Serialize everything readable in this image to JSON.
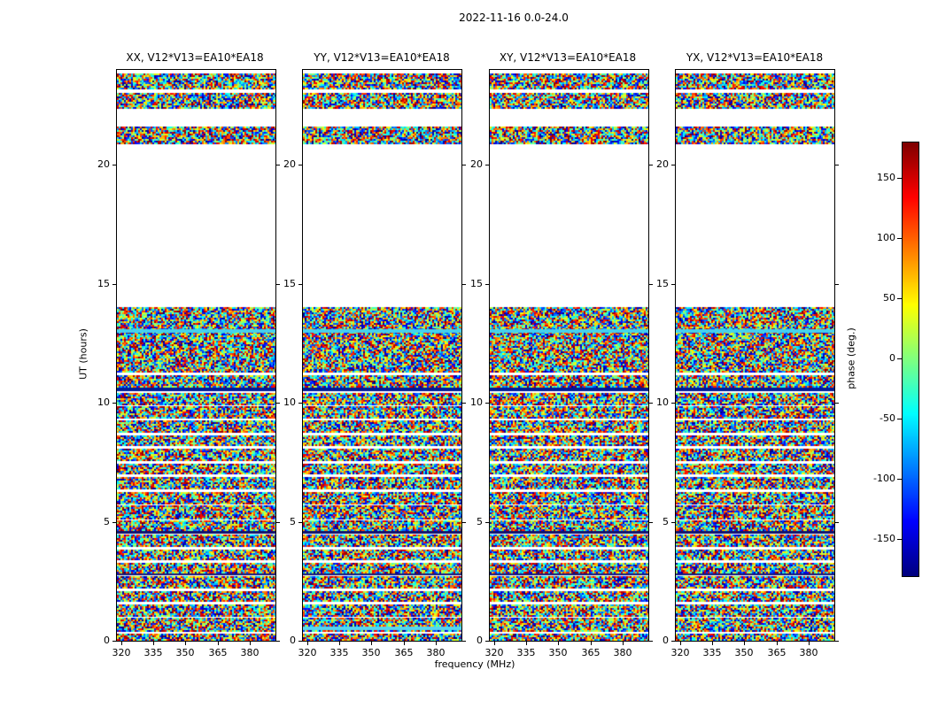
{
  "chart_data": {
    "type": "heatmap",
    "title": "2022-11-16 0.0-24.0",
    "panels": [
      {
        "title": "XX, V12*V13=EA10*EA18",
        "pol": "XX"
      },
      {
        "title": "YY, V12*V13=EA10*EA18",
        "pol": "YY"
      },
      {
        "title": "XY, V12*V13=EA10*EA18",
        "pol": "XY"
      },
      {
        "title": "YX, V12*V13=EA10*EA18",
        "pol": "YX"
      }
    ],
    "xlabel": "frequency (MHz)",
    "ylabel": "UT (hours)",
    "xlim": [
      318,
      392
    ],
    "ylim": [
      0,
      24
    ],
    "xticks": [
      320,
      335,
      350,
      365,
      380
    ],
    "yticks": [
      0,
      5,
      10,
      15,
      20
    ],
    "colorbar": {
      "label": "phase (deg.)",
      "ticks": [
        150,
        100,
        50,
        0,
        -50,
        -100,
        -150
      ],
      "vmin": -180,
      "vmax": 180,
      "colormap": "jet"
    },
    "values": "per-pixel interferometric visibility phase (random-looking -180..180 deg noise) inside observed scan bands; white horizontal regions = no data",
    "time_bands_ut": [
      [
        0.0,
        0.28
      ],
      [
        0.42,
        0.95
      ],
      [
        1.05,
        1.52
      ],
      [
        1.62,
        2.08
      ],
      [
        2.18,
        2.72
      ],
      [
        2.82,
        3.28
      ],
      [
        3.38,
        3.85
      ],
      [
        3.95,
        4.48
      ],
      [
        4.58,
        5.05
      ],
      [
        5.15,
        5.68
      ],
      [
        5.78,
        6.25
      ],
      [
        6.35,
        6.88
      ],
      [
        6.98,
        7.45
      ],
      [
        7.55,
        8.08
      ],
      [
        8.18,
        8.65
      ],
      [
        8.75,
        9.28
      ],
      [
        9.38,
        9.85
      ],
      [
        9.95,
        10.42
      ],
      [
        10.5,
        11.18
      ],
      [
        11.3,
        14.02
      ],
      [
        20.92,
        21.6
      ],
      [
        22.4,
        23.05
      ],
      [
        23.18,
        23.85
      ]
    ],
    "stripes": [
      {
        "ut_start": 10.5,
        "ut_end": 10.66,
        "color": "#001c96",
        "panels": [
          0,
          1,
          2,
          3
        ]
      },
      {
        "ut_start": 12.96,
        "ut_end": 13.1,
        "color": "#45d1ee",
        "panels": [
          0,
          1,
          2,
          3
        ]
      },
      {
        "ut_start": 0.44,
        "ut_end": 0.6,
        "color": "#55d6f2",
        "panels": [
          1
        ]
      },
      {
        "ut_start": 4.5,
        "ut_end": 4.62,
        "color": "#10126e",
        "panels": [
          0,
          1,
          2,
          3
        ]
      },
      {
        "ut_start": 2.74,
        "ut_end": 2.84,
        "color": "#141a7a",
        "panels": [
          0,
          1,
          2,
          3
        ]
      }
    ]
  }
}
